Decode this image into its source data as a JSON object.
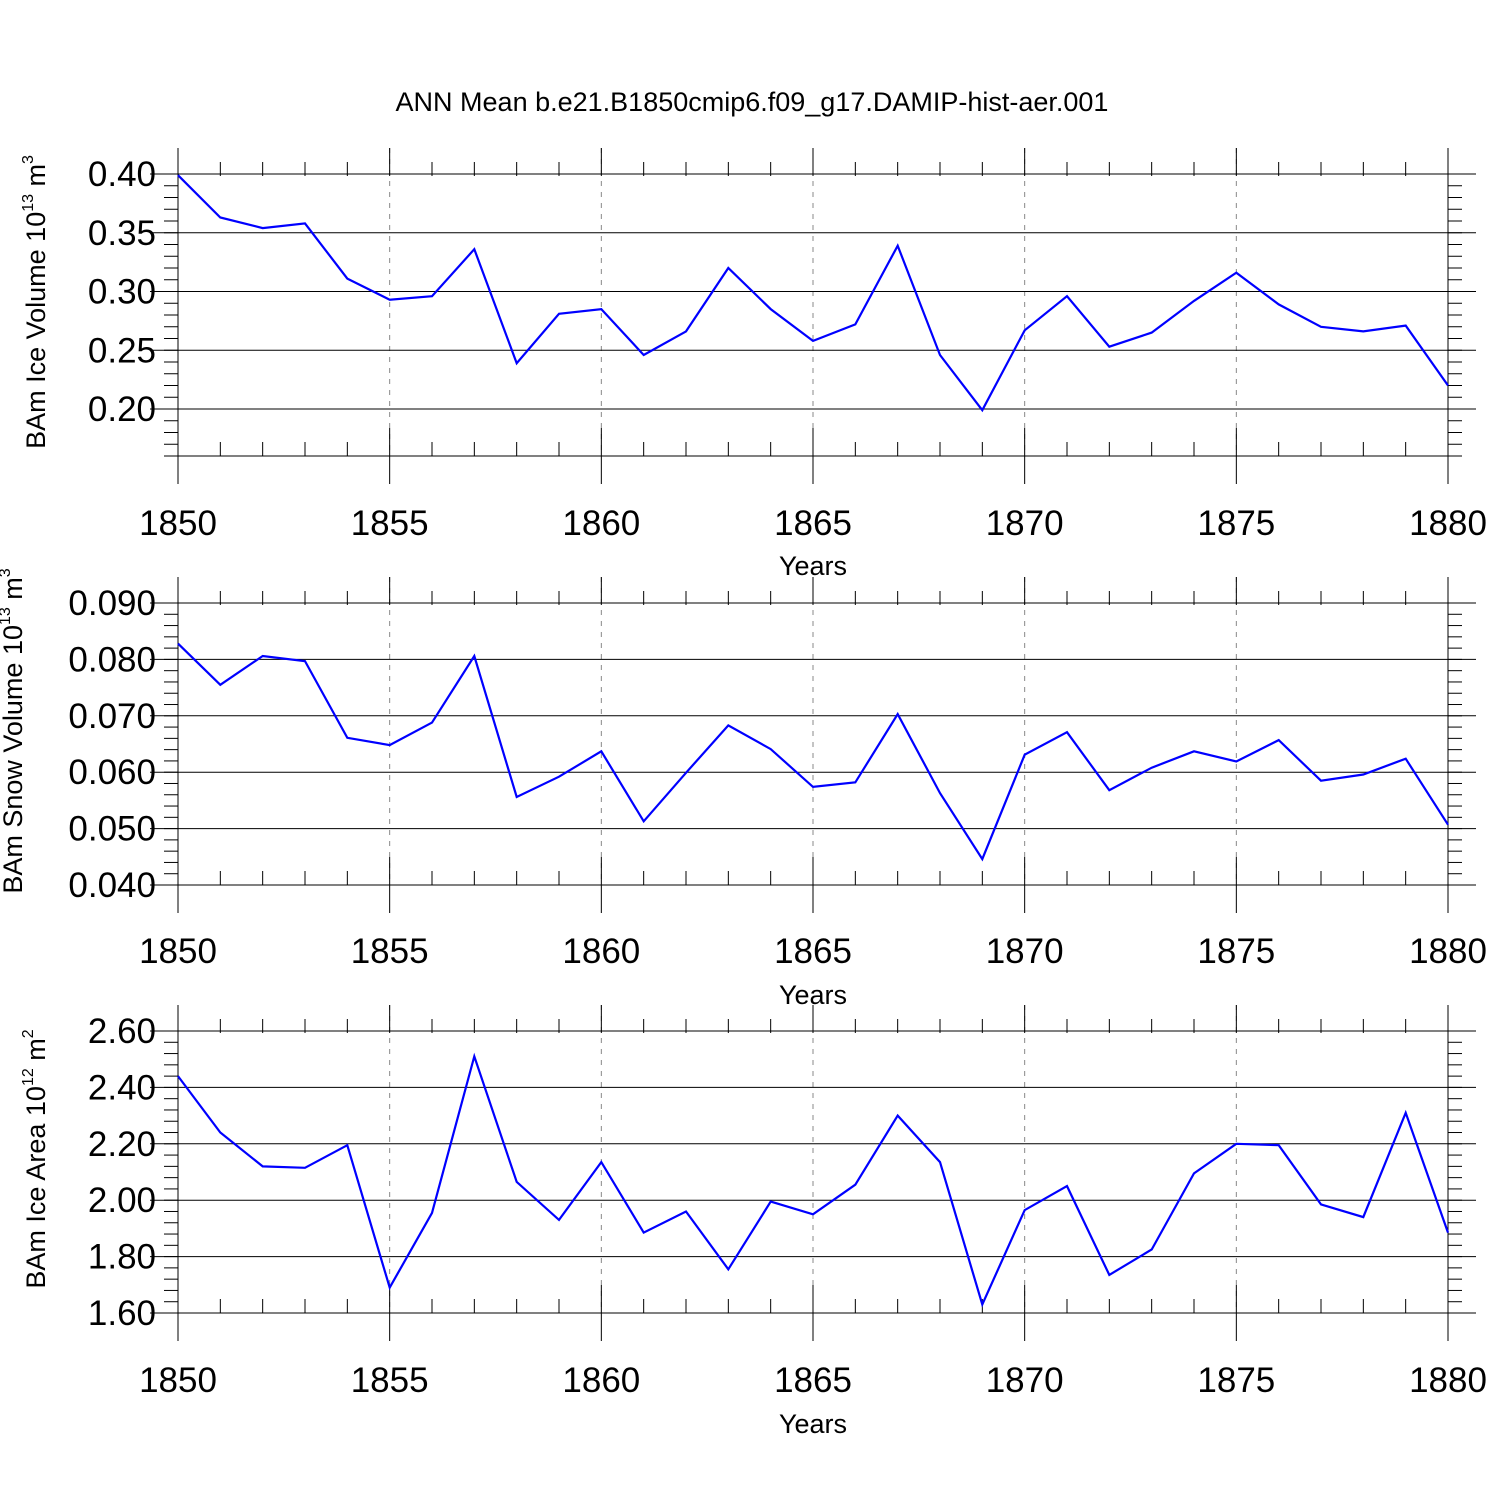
{
  "title": "ANN Mean b.e21.B1850cmip6.f09_g17.DAMIP-hist-aer.001",
  "colors": {
    "series": "#0000ff",
    "axis": "#000000",
    "grid": "#888888"
  },
  "chart_data": [
    {
      "type": "line",
      "xlabel": "Years",
      "ylabel": {
        "prefix": "BAm Ice Volume 10",
        "exp1": "13",
        "mid": " m",
        "exp2": "3"
      },
      "xlim": [
        1850,
        1880
      ],
      "ylim": [
        0.16,
        0.4
      ],
      "xticks": [
        "1850",
        "1855",
        "1860",
        "1865",
        "1870",
        "1875",
        "1880"
      ],
      "yticks": [
        "0.20",
        "0.25",
        "0.30",
        "0.35",
        "0.40"
      ],
      "grid": "vertical dashed at major x ticks",
      "x": [
        1850,
        1851,
        1852,
        1853,
        1854,
        1855,
        1856,
        1857,
        1858,
        1859,
        1860,
        1861,
        1862,
        1863,
        1864,
        1865,
        1866,
        1867,
        1868,
        1869,
        1870,
        1871,
        1872,
        1873,
        1874,
        1875,
        1876,
        1877,
        1878,
        1879,
        1880
      ],
      "values": [
        0.399,
        0.363,
        0.354,
        0.358,
        0.311,
        0.293,
        0.296,
        0.336,
        0.239,
        0.281,
        0.285,
        0.246,
        0.266,
        0.32,
        0.285,
        0.258,
        0.272,
        0.339,
        0.246,
        0.199,
        0.267,
        0.296,
        0.253,
        0.265,
        0.292,
        0.316,
        0.289,
        0.27,
        0.266,
        0.271,
        0.22
      ]
    },
    {
      "type": "line",
      "xlabel": "Years",
      "ylabel": {
        "prefix": "BAm Snow Volume 10",
        "exp1": "13",
        "mid": " m",
        "exp2": "3"
      },
      "xlim": [
        1850,
        1880
      ],
      "ylim": [
        0.04,
        0.09
      ],
      "xticks": [
        "1850",
        "1855",
        "1860",
        "1865",
        "1870",
        "1875",
        "1880"
      ],
      "yticks": [
        "0.040",
        "0.050",
        "0.060",
        "0.070",
        "0.080",
        "0.090"
      ],
      "grid": "vertical dashed at major x ticks",
      "x": [
        1850,
        1851,
        1852,
        1853,
        1854,
        1855,
        1856,
        1857,
        1858,
        1859,
        1860,
        1861,
        1862,
        1863,
        1864,
        1865,
        1866,
        1867,
        1868,
        1869,
        1870,
        1871,
        1872,
        1873,
        1874,
        1875,
        1876,
        1877,
        1878,
        1879,
        1880
      ],
      "values": [
        0.0828,
        0.0755,
        0.0806,
        0.0797,
        0.0661,
        0.0648,
        0.0688,
        0.0806,
        0.0556,
        0.0592,
        0.0637,
        0.0513,
        0.0599,
        0.0683,
        0.0641,
        0.0574,
        0.0582,
        0.0703,
        0.0563,
        0.0446,
        0.0631,
        0.0671,
        0.0568,
        0.0608,
        0.0637,
        0.0619,
        0.0657,
        0.0585,
        0.0596,
        0.0624,
        0.0507
      ]
    },
    {
      "type": "line",
      "xlabel": "Years",
      "ylabel": {
        "prefix": "BAm Ice Area 10",
        "exp1": "12",
        "mid": " m",
        "exp2": "2"
      },
      "xlim": [
        1850,
        1880
      ],
      "ylim": [
        1.6,
        2.6
      ],
      "xticks": [
        "1850",
        "1855",
        "1860",
        "1865",
        "1870",
        "1875",
        "1880"
      ],
      "yticks": [
        "1.60",
        "1.80",
        "2.00",
        "2.20",
        "2.40",
        "2.60"
      ],
      "grid": "vertical dashed at major x ticks",
      "x": [
        1850,
        1851,
        1852,
        1853,
        1854,
        1855,
        1856,
        1857,
        1858,
        1859,
        1860,
        1861,
        1862,
        1863,
        1864,
        1865,
        1866,
        1867,
        1868,
        1869,
        1870,
        1871,
        1872,
        1873,
        1874,
        1875,
        1876,
        1877,
        1878,
        1879,
        1880
      ],
      "values": [
        2.44,
        2.24,
        2.12,
        2.115,
        2.195,
        1.69,
        1.955,
        2.51,
        2.065,
        1.93,
        2.135,
        1.885,
        1.96,
        1.755,
        1.995,
        1.95,
        2.055,
        2.3,
        2.135,
        1.63,
        1.965,
        2.05,
        1.735,
        1.825,
        2.095,
        2.2,
        2.195,
        1.985,
        1.94,
        2.31,
        1.885
      ]
    }
  ]
}
